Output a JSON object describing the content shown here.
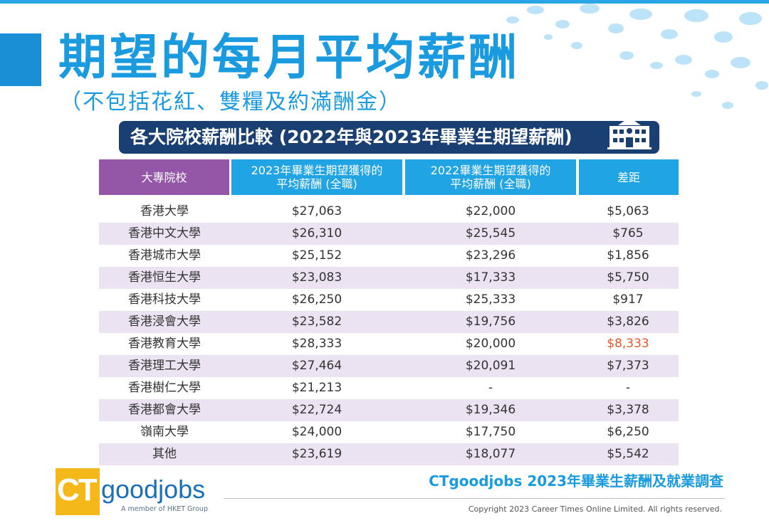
{
  "title": "期望的每月平均薪酬",
  "subtitle": "（不包括花紅、雙糧及約滿酬金）",
  "banner": "各大院校薪酬比較 (2022年與2023年畢業生期望薪酬)",
  "table": {
    "headers": [
      "大專院校",
      "2023年畢業生期望獲得的\n平均薪酬 (全職)",
      "2022畢業生期望獲得的\n平均薪酬 (全職)",
      "差距"
    ],
    "rows": [
      {
        "school": "香港大學",
        "y2023": "$27,063",
        "y2022": "$22,000",
        "diff": "$5,063"
      },
      {
        "school": "香港中文大學",
        "y2023": "$26,310",
        "y2022": "$25,545",
        "diff": "$765"
      },
      {
        "school": "香港城市大學",
        "y2023": "$25,152",
        "y2022": "$23,296",
        "diff": "$1,856"
      },
      {
        "school": "香港恒生大學",
        "y2023": "$23,083",
        "y2022": "$17,333",
        "diff": "$5,750"
      },
      {
        "school": "香港科技大學",
        "y2023": "$26,250",
        "y2022": "$25,333",
        "diff": "$917"
      },
      {
        "school": "香港浸會大學",
        "y2023": "$23,582",
        "y2022": "$19,756",
        "diff": "$3,826"
      },
      {
        "school": "香港教育大學",
        "y2023": "$28,333",
        "y2022": "$20,000",
        "diff": "$8,333"
      },
      {
        "school": "香港理工大學",
        "y2023": "$27,464",
        "y2022": "$20,091",
        "diff": "$7,373"
      },
      {
        "school": "香港樹仁大學",
        "y2023": "$21,213",
        "y2022": "-",
        "diff": "-"
      },
      {
        "school": "香港都會大學",
        "y2023": "$22,724",
        "y2022": "$19,346",
        "diff": "$3,378"
      },
      {
        "school": "嶺南大學",
        "y2023": "$24,000",
        "y2022": "$17,750",
        "diff": "$6,250"
      },
      {
        "school": "其他",
        "y2023": "$23,619",
        "y2022": "$18,077",
        "diff": "$5,542"
      }
    ],
    "highlight_color": "#e5582a"
  },
  "logo": {
    "ct": "CT",
    "word": "goodjobs",
    "tagline": "A member of HKET Group"
  },
  "survey_title": "CTgoodjobs 2023年畢業生薪酬及就業調查",
  "copyright": "Copyright 2023 Career Times Online Limited. All rights reserved.",
  "colors": {
    "title_blue": "#1a9be0",
    "banner_navy": "#1a3f73",
    "header_purple": "#9457a8",
    "header_blue": "#20a4e3",
    "alt_row": "#ebe3f1",
    "logo_yellow": "#f5b81b"
  },
  "icons": {
    "banner": "school-building-icon"
  }
}
